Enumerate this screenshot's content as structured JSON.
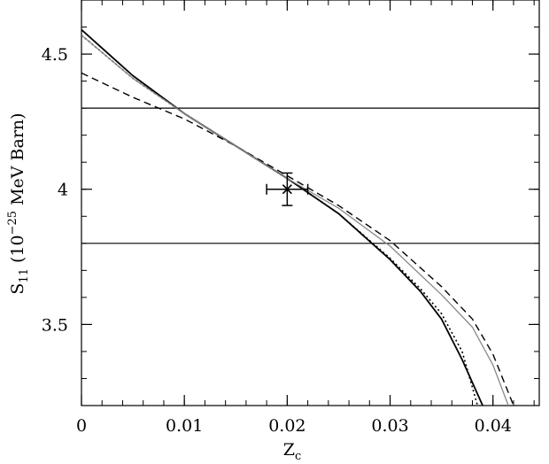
{
  "chart_data": {
    "type": "line",
    "xlabel": "Z",
    "xlabel_sub": "c",
    "ylabel_parts": [
      "S",
      "11",
      " (10",
      "−25",
      " MeV Barn)"
    ],
    "xlim": [
      0,
      0.0445
    ],
    "ylim": [
      3.2,
      4.7
    ],
    "x_ticks": [
      0,
      0.01,
      0.02,
      0.03,
      0.04
    ],
    "x_tick_labels": [
      "0",
      "0.01",
      "0.02",
      "0.03",
      "0.04"
    ],
    "y_ticks": [
      3.5,
      4,
      4.5
    ],
    "y_tick_labels": [
      "3.5",
      "4",
      "4.5"
    ],
    "x_minor_step": 0.002,
    "y_minor_step": 0.1,
    "hlines": [
      4.3,
      3.8
    ],
    "series": [
      {
        "style": "solid",
        "color": "#000000",
        "x": [
          0,
          0.005,
          0.01,
          0.015,
          0.02,
          0.025,
          0.03,
          0.033,
          0.035,
          0.037,
          0.039
        ],
        "y": [
          4.59,
          4.42,
          4.28,
          4.16,
          4.04,
          3.91,
          3.74,
          3.62,
          3.52,
          3.37,
          3.2
        ]
      },
      {
        "style": "dotted",
        "color": "#000000",
        "x": [
          0,
          0.005,
          0.01,
          0.015,
          0.02,
          0.025,
          0.03,
          0.033,
          0.035,
          0.037,
          0.0385
        ],
        "y": [
          4.57,
          4.41,
          4.28,
          4.16,
          4.04,
          3.91,
          3.745,
          3.63,
          3.54,
          3.4,
          3.2
        ]
      },
      {
        "style": "dashed",
        "color": "#000000",
        "x": [
          0,
          0.005,
          0.01,
          0.015,
          0.02,
          0.025,
          0.03,
          0.035,
          0.038,
          0.04,
          0.042
        ],
        "y": [
          4.43,
          4.34,
          4.26,
          4.16,
          4.05,
          3.94,
          3.81,
          3.64,
          3.52,
          3.39,
          3.2
        ]
      },
      {
        "style": "solid-gray",
        "color": "#888888",
        "x": [
          0,
          0.005,
          0.01,
          0.015,
          0.02,
          0.025,
          0.03,
          0.035,
          0.038,
          0.04,
          0.0415
        ],
        "y": [
          4.57,
          4.41,
          4.28,
          4.16,
          4.04,
          3.93,
          3.79,
          3.61,
          3.49,
          3.35,
          3.2
        ]
      }
    ],
    "data_point": {
      "x": 0.02,
      "y": 4.0,
      "x_err": 0.002,
      "y_err": 0.06
    }
  }
}
